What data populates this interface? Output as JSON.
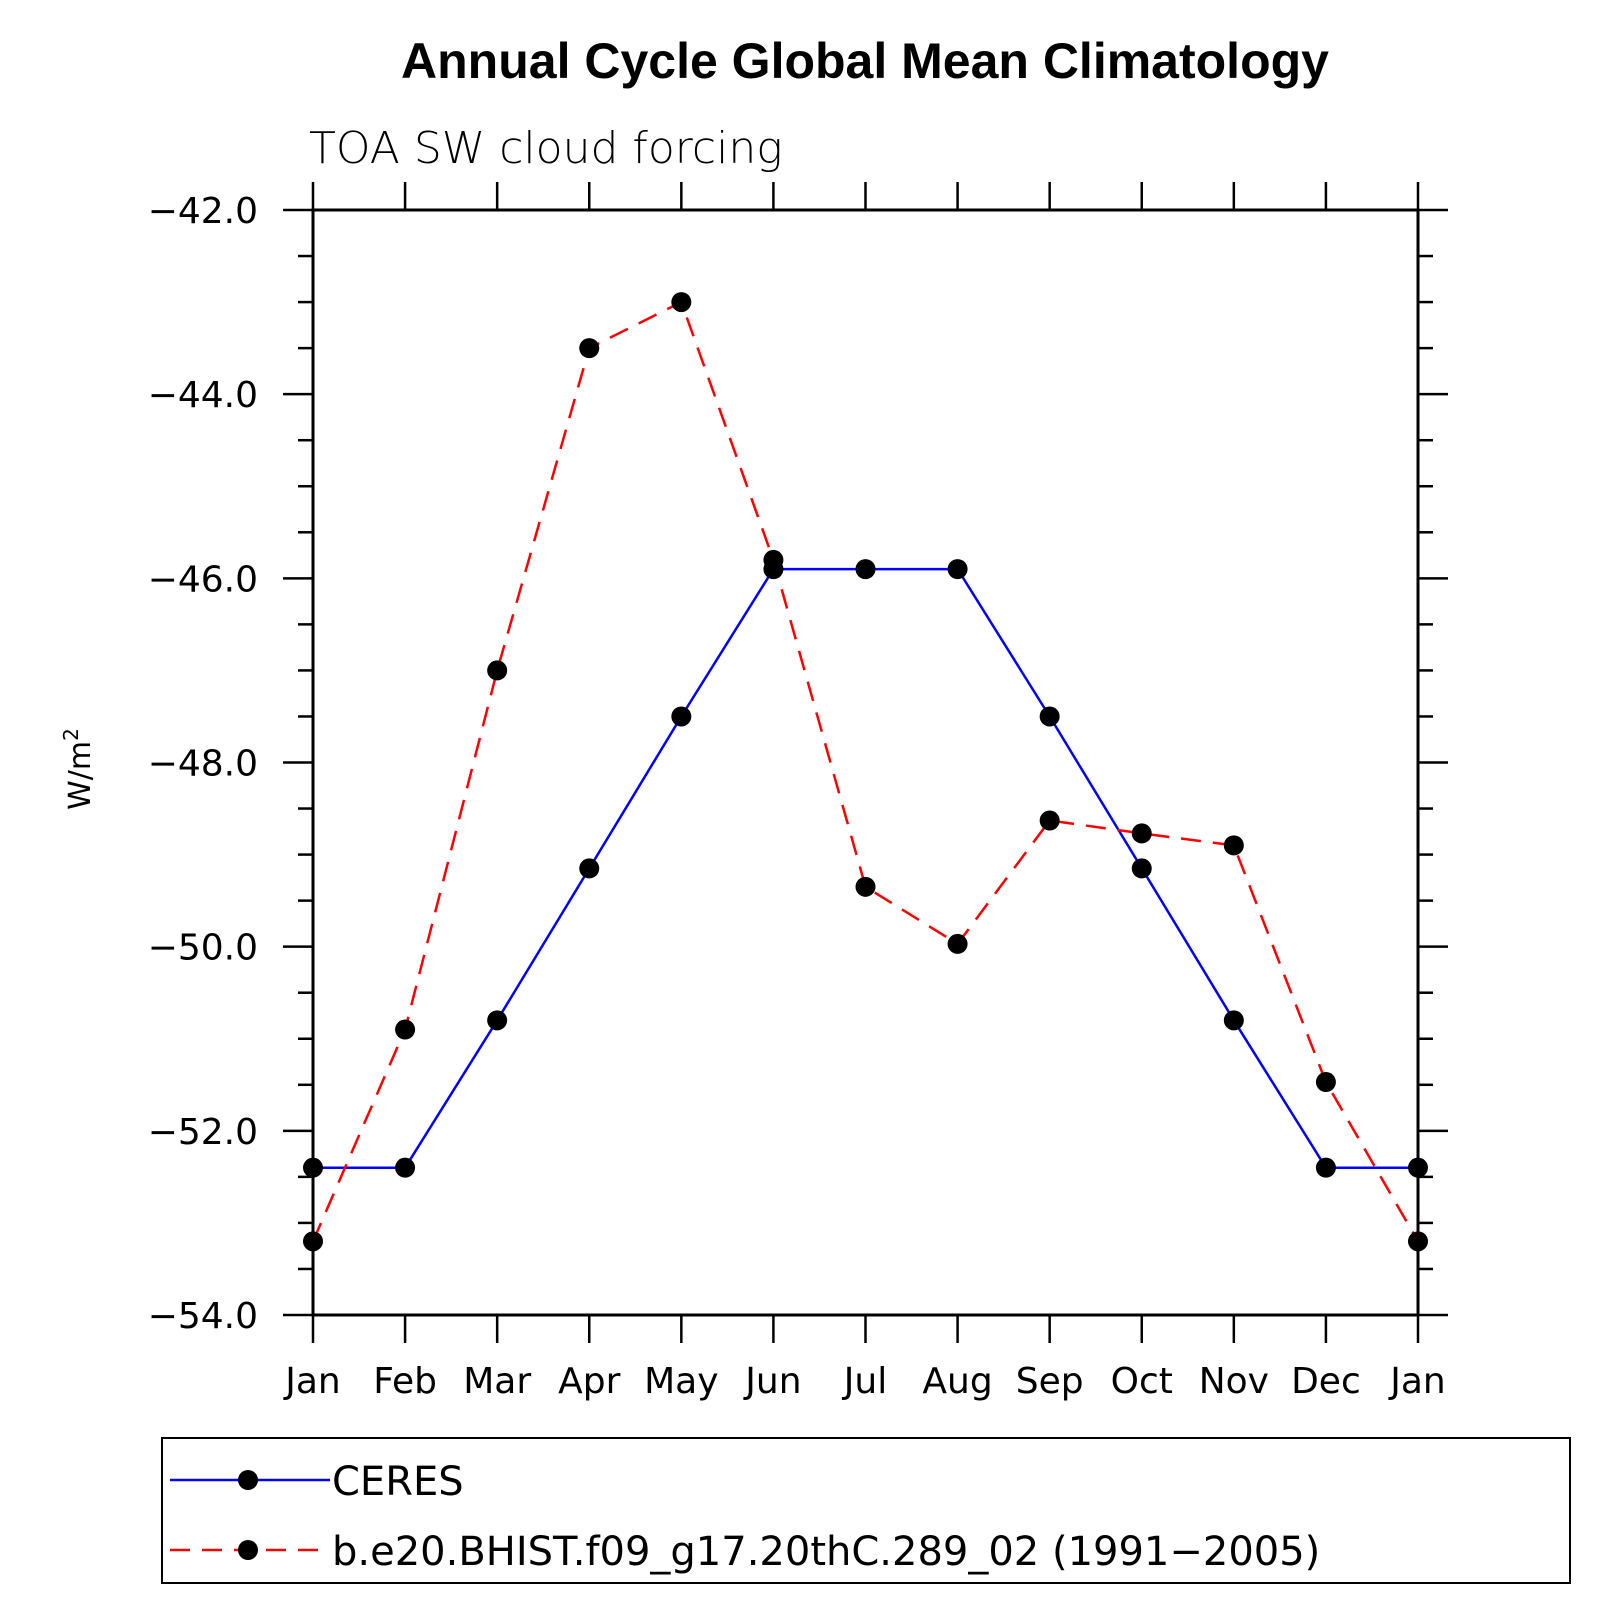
{
  "chart_data": {
    "type": "line",
    "title": "Annual Cycle Global Mean Climatology",
    "subtitle": "TOA SW cloud forcing",
    "ylabel": "W/m",
    "ylabel_superscript": "2",
    "categories": [
      "Jan",
      "Feb",
      "Mar",
      "Apr",
      "May",
      "Jun",
      "Jul",
      "Aug",
      "Sep",
      "Oct",
      "Nov",
      "Dec",
      "Jan"
    ],
    "ylim": [
      -54.0,
      -42.0
    ],
    "yticks": [
      "-42.0",
      "-44.0",
      "-46.0",
      "-48.0",
      "-50.0",
      "-52.0",
      "-54.0"
    ],
    "series": [
      {
        "name": "CERES",
        "color": "#0000ff",
        "dash": "solid",
        "values": [
          -52.4,
          -52.4,
          -50.8,
          -49.15,
          -47.5,
          -45.9,
          -45.9,
          -45.9,
          -47.5,
          -49.15,
          -50.8,
          -52.4,
          -52.4
        ]
      },
      {
        "name": "b.e20.BHIST.f09_g17.20thC.289_02 (1991-2005)",
        "color": "#ff0000",
        "dash": "dashed",
        "values": [
          -53.2,
          -50.9,
          -47.0,
          -43.5,
          -43.0,
          -45.8,
          -49.35,
          -49.97,
          -48.63,
          -48.77,
          -48.9,
          -51.47,
          -53.2
        ]
      }
    ],
    "marker_color": "#000000",
    "legend": "bottom",
    "grid": false
  }
}
